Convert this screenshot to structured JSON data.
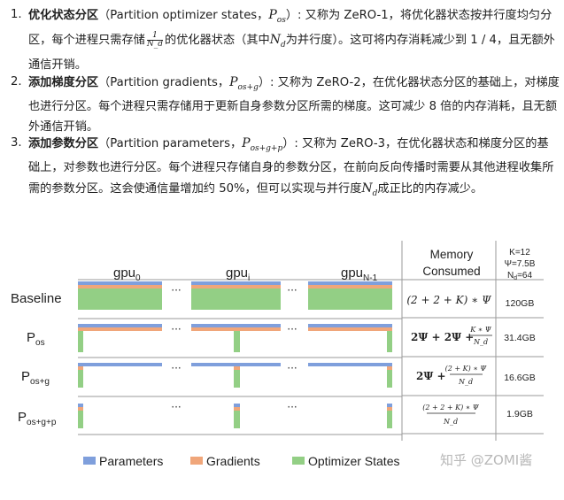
{
  "items": [
    {
      "num": "1.",
      "title": "优化状态分区",
      "p1": "（Partition optimizer states，",
      "math": "P",
      "sub": "os",
      "p2": "）: 又称为 ZeRO-1，将优化器状态按并行度均匀分区，每个进程只需存储",
      "frac_num": "1",
      "frac_den": "N_d",
      "p3": "的优化器状态（其中",
      "math2": "N",
      "sub2": "d",
      "p4": "为并行度）。这可将内存消耗减少到 1 / 4，且无额外通信开销。"
    },
    {
      "num": "2.",
      "title": "添加梯度分区",
      "p1": "（Partition gradients，",
      "math": "P",
      "sub": "os+g",
      "p2": "）: 又称为 ZeRO-2，在优化器状态分区的基础上，对梯度也进行分区。每个进程只需存储用于更新自身参数分区所需的梯度。这可减少 8 倍的内存消耗，且无额外通信开销。"
    },
    {
      "num": "3.",
      "title": "添加参数分区",
      "p1": "（Partition parameters，",
      "math": "P",
      "sub": "os+g+p",
      "p2": "）: 又称为 ZeRO-3，在优化器状态和梯度分区的基础上，对参数也进行分区。每个进程只存储自身的参数分区，在前向反向传播时需要从其他进程收集所需的参数分区。这会使通信量增加约 50%，但可以实现与并行度",
      "math2": "N",
      "sub2": "d",
      "p3": "成正比的内存减少。"
    }
  ],
  "diagram": {
    "gpu_labels": [
      {
        "base": "gpu",
        "sub": "0"
      },
      {
        "base": "gpu",
        "sub": "i"
      },
      {
        "base": "gpu",
        "sub": "N-1"
      }
    ],
    "ellipsis": "···",
    "rows": [
      {
        "label": "Baseline",
        "sub": "",
        "formula": "(2 + 2 + K) ∗ Ψ",
        "value": "120GB"
      },
      {
        "label": "P",
        "sub": "os",
        "formula_a": "2Ψ + 2Ψ +",
        "frac_num": "K ∗ Ψ",
        "frac_den": "N_d",
        "value": "31.4GB"
      },
      {
        "label": "P",
        "sub": "os+g",
        "formula_a": "2Ψ +",
        "frac_num": "(2 + K) ∗ Ψ",
        "frac_den": "N_d",
        "value": "16.6GB"
      },
      {
        "label": "P",
        "sub": "os+g+p",
        "frac_num": "(2 + 2 + K) ∗ Ψ",
        "frac_den": "N_d",
        "value": "1.9GB"
      }
    ],
    "memory_header": [
      "Memory",
      "Consumed"
    ],
    "params": [
      "K=12",
      "Ψ=7.5B",
      "N",
      "d",
      "=64"
    ],
    "legend": [
      "Parameters",
      "Gradients",
      "Optimizer States"
    ],
    "colors": {
      "parameters": "#7f9fdc",
      "gradients": "#f0a67a",
      "optimizer": "#93cf85"
    }
  },
  "watermark": "知乎 @ZOMI酱"
}
